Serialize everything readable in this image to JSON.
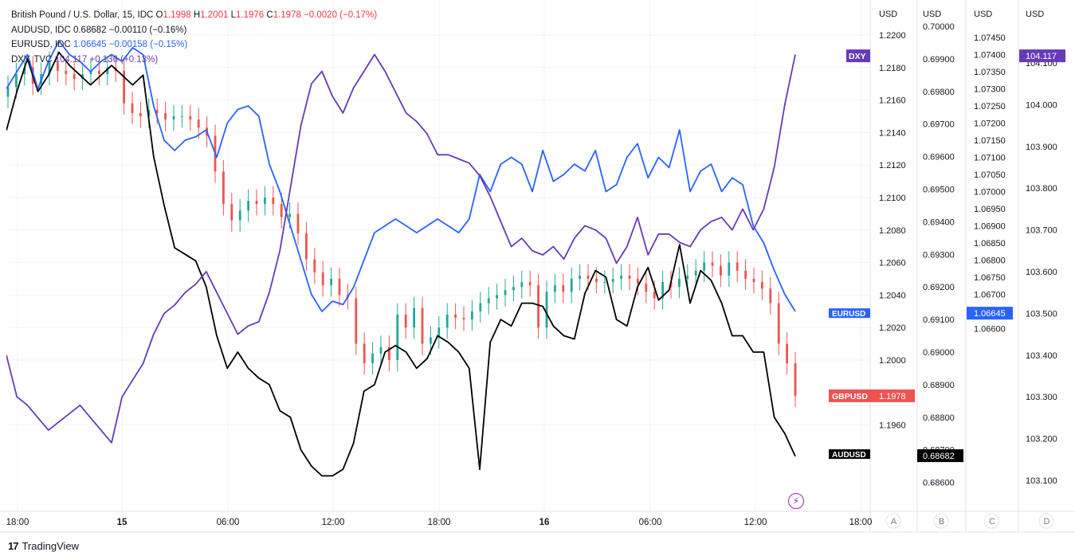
{
  "legend": {
    "gbp": {
      "name": "British Pound / U.S. Dollar, 15, IDC",
      "o_lbl": "O",
      "o": "1.1998",
      "h_lbl": "H",
      "h": "1.2001",
      "l_lbl": "L",
      "l": "1.1976",
      "c_lbl": "C",
      "c": "1.1978",
      "chg": "−0.0020 (−0.17%)"
    },
    "aud": {
      "name": "AUDUSD, IDC",
      "last": "0.68682",
      "chg": "−0.00110 (−0.16%)"
    },
    "eur": {
      "name": "EURUSD, IDC",
      "last": "1.06645",
      "chg": "−0.00158 (−0.15%)"
    },
    "dxy": {
      "name": "DXY, TVC",
      "last": "104.117",
      "chg": "+0.136 (+0.13%)"
    }
  },
  "footer": {
    "brand": "TradingView",
    "logo": "17"
  },
  "colors": {
    "gbp_up": "#26a69a",
    "gbp_down": "#ef5350",
    "aud": "#000000",
    "eur": "#2962ff",
    "dxy": "#673ab7"
  },
  "chart_data": {
    "type": "line",
    "time_labels": [
      "18:00",
      "15",
      "06:00",
      "12:00",
      "18:00",
      "16",
      "06:00",
      "12:00",
      "18:00"
    ],
    "scales": [
      {
        "id": "A",
        "unit": "USD",
        "ticks": [
          "1.2200",
          "1.2180",
          "1.2160",
          "1.2140",
          "1.2120",
          "1.2100",
          "1.2080",
          "1.2060",
          "1.2040",
          "1.2020",
          "1.2000",
          "1.1960"
        ],
        "last_label": "GBPUSD",
        "last": "1.1978",
        "range": [
          1.196,
          1.22
        ]
      },
      {
        "id": "B",
        "unit": "USD",
        "ticks": [
          "0.70000",
          "0.69900",
          "0.69800",
          "0.69700",
          "0.69600",
          "0.69500",
          "0.69400",
          "0.69300",
          "0.69200",
          "0.69100",
          "0.69000",
          "0.68900",
          "0.68800",
          "0.68700",
          "0.68600"
        ],
        "last_label": "AUDUSD",
        "last": "0.68682",
        "range": [
          0.686,
          0.7
        ]
      },
      {
        "id": "C",
        "unit": "USD",
        "ticks": [
          "1.07450",
          "1.07400",
          "1.07350",
          "1.07300",
          "1.07250",
          "1.07200",
          "1.07150",
          "1.07100",
          "1.07050",
          "1.07000",
          "1.06950",
          "1.06900",
          "1.06850",
          "1.06800",
          "1.06750",
          "1.06700",
          "1.06600"
        ],
        "last_label": "EURUSD",
        "last": "1.06645",
        "range": [
          1.066,
          1.0745
        ]
      },
      {
        "id": "D",
        "unit": "USD",
        "ticks": [
          "104.100",
          "104.000",
          "103.900",
          "103.800",
          "103.700",
          "103.600",
          "103.500",
          "103.400",
          "103.300",
          "103.200",
          "103.100"
        ],
        "last_label": "DXY",
        "last": "104.117",
        "range": [
          103.1,
          104.12
        ]
      }
    ],
    "series": [
      {
        "name": "GBPUSD",
        "type": "candle",
        "scale": "A",
        "close": [
          1.2168,
          1.2176,
          1.218,
          1.217,
          1.2176,
          1.2183,
          1.2178,
          1.2176,
          1.2173,
          1.2176,
          1.2178,
          1.2176,
          1.218,
          1.2178,
          1.2158,
          1.2152,
          1.215,
          1.2154,
          1.2152,
          1.2148,
          1.215,
          1.215,
          1.2148,
          1.2143,
          1.2138,
          1.2116,
          1.2096,
          1.2086,
          1.2092,
          1.2098,
          1.2096,
          1.21,
          1.2096,
          1.2088,
          1.209,
          1.2078,
          1.2062,
          1.2054,
          1.2046,
          1.205,
          1.204,
          1.2038,
          1.201,
          1.1998,
          1.2004,
          1.2008,
          1.2,
          1.2028,
          1.202,
          1.2032,
          1.201,
          1.2014,
          1.202,
          1.2028,
          1.2026,
          1.2025,
          1.203,
          1.2035,
          1.2038,
          1.204,
          1.2043,
          1.2045,
          1.2048,
          1.2046,
          1.202,
          1.2042,
          1.2046,
          1.2042,
          1.205,
          1.2052,
          1.205,
          1.2048,
          1.2048,
          1.205,
          1.2052,
          1.205,
          1.2047,
          1.2042,
          1.2038,
          1.2048,
          1.2045,
          1.205,
          1.2052,
          1.2055,
          1.206,
          1.2058,
          1.2052,
          1.206,
          1.2055,
          1.205,
          1.2048,
          1.2044,
          1.2035,
          1.201,
          1.1998,
          1.1978
        ]
      },
      {
        "name": "AUDUSD",
        "type": "line",
        "scale": "B",
        "values": [
          0.6968,
          0.698,
          0.699,
          0.698,
          0.6985,
          0.6992,
          0.6988,
          0.6985,
          0.6982,
          0.6985,
          0.6988,
          0.6985,
          0.6982,
          0.6985,
          0.696,
          0.6945,
          0.6932,
          0.693,
          0.6928,
          0.692,
          0.6905,
          0.6895,
          0.69,
          0.6895,
          0.6892,
          0.689,
          0.6882,
          0.688,
          0.687,
          0.6865,
          0.6862,
          0.6862,
          0.6864,
          0.6872,
          0.6888,
          0.689,
          0.69,
          0.6902,
          0.69,
          0.6895,
          0.6898,
          0.6905,
          0.6903,
          0.69,
          0.6895,
          0.6864,
          0.6903,
          0.691,
          0.6908,
          0.6915,
          0.6915,
          0.6914,
          0.6908,
          0.6905,
          0.6904,
          0.6918,
          0.6925,
          0.6923,
          0.691,
          0.6908,
          0.692,
          0.6926,
          0.6916,
          0.6919,
          0.6933,
          0.6915,
          0.6925,
          0.6922,
          0.6915,
          0.6905,
          0.6905,
          0.69,
          0.69,
          0.688,
          0.6875,
          0.6868
        ]
      },
      {
        "name": "EURUSD",
        "type": "line",
        "scale": "C",
        "values": [
          1.073,
          1.0735,
          1.074,
          1.073,
          1.0738,
          1.0744,
          1.074,
          1.0738,
          1.0735,
          1.0738,
          1.074,
          1.0738,
          1.0742,
          1.074,
          1.0725,
          1.0715,
          1.0712,
          1.0715,
          1.0716,
          1.0718,
          1.071,
          1.072,
          1.0724,
          1.0725,
          1.0722,
          1.0708,
          1.07,
          1.069,
          1.068,
          1.067,
          1.0665,
          1.0668,
          1.0667,
          1.0672,
          1.068,
          1.0688,
          1.069,
          1.0692,
          1.069,
          1.0688,
          1.069,
          1.0692,
          1.069,
          1.0688,
          1.0692,
          1.0705,
          1.07,
          1.0708,
          1.071,
          1.0708,
          1.07,
          1.0712,
          1.0703,
          1.0705,
          1.0708,
          1.0706,
          1.0712,
          1.07,
          1.0702,
          1.071,
          1.0714,
          1.0704,
          1.071,
          1.0707,
          1.0718,
          1.07,
          1.0706,
          1.0708,
          1.07,
          1.0704,
          1.0702,
          1.069,
          1.0685,
          1.0677,
          1.067,
          1.0665
        ]
      },
      {
        "name": "DXY",
        "type": "line",
        "scale": "D",
        "values": [
          103.4,
          103.3,
          103.28,
          103.25,
          103.22,
          103.24,
          103.26,
          103.28,
          103.25,
          103.22,
          103.19,
          103.3,
          103.34,
          103.38,
          103.45,
          103.5,
          103.52,
          103.55,
          103.57,
          103.6,
          103.55,
          103.5,
          103.45,
          103.47,
          103.48,
          103.55,
          103.65,
          103.8,
          103.95,
          104.05,
          104.08,
          104.02,
          103.98,
          104.04,
          104.08,
          104.12,
          104.08,
          104.03,
          103.98,
          103.96,
          103.93,
          103.88,
          103.88,
          103.87,
          103.86,
          103.83,
          103.78,
          103.72,
          103.66,
          103.68,
          103.65,
          103.64,
          103.66,
          103.63,
          103.68,
          103.71,
          103.7,
          103.68,
          103.62,
          103.66,
          103.73,
          103.64,
          103.69,
          103.69,
          103.67,
          103.66,
          103.7,
          103.72,
          103.73,
          103.7,
          103.75,
          103.7,
          103.75,
          103.85,
          104.0,
          104.12
        ]
      }
    ]
  }
}
